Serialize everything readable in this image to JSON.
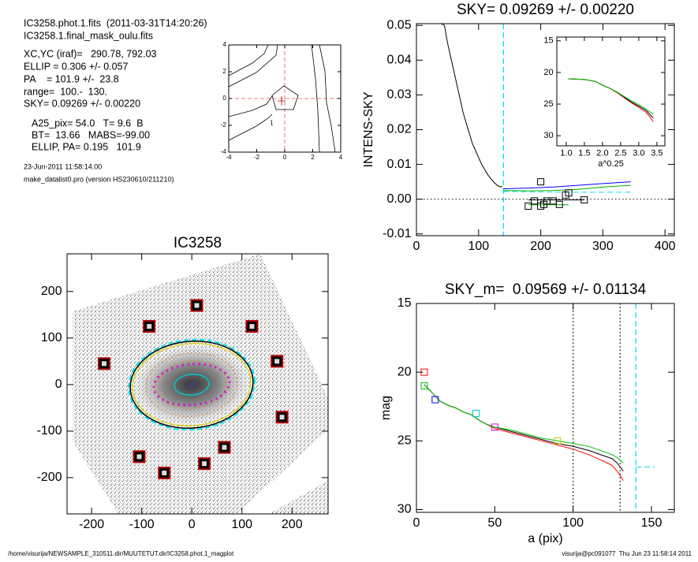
{
  "header": {
    "lines": [
      "IC3258.phot.1.fits  (2011-03-31T14:20:26)",
      "IC3258.1.final_mask_oulu.fits",
      "XC,YC (iraf)=   290.78, 792.03",
      "ELLIP = 0.306 +/- 0.057",
      "PA    = 101.9 +/-  23.8",
      "range=  100.-  130.",
      "SKY= 0.09269 +/- 0.00220",
      "A25_pix= 54.0   T= 9.6  B",
      "BT=  13.66   MABS=-99.00",
      "ELLIP, PA= 0.195   101.9",
      "23-Jun-2011 11:58:14.00",
      "make_datalist0.pro (version HS230610/211210)"
    ]
  },
  "footer": {
    "left": "/home/visurija/NEWSAMPLE_310511.dir/MUUTETUT.dir/IC3258.phot.1_magplot",
    "right": "visurija@pc091077  Thu Jun 23 11:58:14 2011"
  },
  "chart_data": [
    {
      "type": "contour",
      "xlim": [
        -4,
        4
      ],
      "ylim": [
        -4,
        4
      ],
      "xticks": [
        -4,
        -2,
        0,
        2,
        4
      ],
      "yticks": [
        -4,
        -2,
        0,
        2,
        4
      ]
    },
    {
      "type": "line",
      "title": "SKY= 0.09269 +/- 0.00220",
      "y_label": "INTENS-SKY",
      "xlim": [
        0,
        415
      ],
      "ylim": [
        -0.0105,
        0.0505
      ],
      "xticks": [
        0,
        100,
        200,
        300,
        400
      ],
      "yticks": [
        -0.01,
        {
          "value": 0,
          "label": "0.00"
        },
        0.01,
        0.02,
        0.03,
        0.04,
        0.05
      ],
      "series": [
        {
          "color": "#000000",
          "style": "solid",
          "x": [
            40,
            45,
            50,
            55,
            60,
            65,
            70,
            75,
            80,
            85,
            90,
            95,
            100,
            105,
            110,
            115,
            120,
            125,
            130,
            135,
            138
          ],
          "values": [
            0.0505,
            0.05,
            0.045,
            0.041,
            0.037,
            0.033,
            0.029,
            0.025,
            0.022,
            0.019,
            0.016,
            0.014,
            0.012,
            0.01,
            0.0085,
            0.007,
            0.0058,
            0.0048,
            0.004,
            0.0035,
            0.0038
          ]
        },
        {
          "color": "#0000ff",
          "style": "solid",
          "x": [
            140,
            180,
            220,
            260,
            300,
            345
          ],
          "values": [
            0.003,
            0.0032,
            0.0035,
            0.004,
            0.0045,
            0.005
          ]
        },
        {
          "color": "#00b000",
          "style": "solid",
          "x": [
            140,
            180,
            220,
            260,
            300,
            345
          ],
          "values": [
            0.0025,
            0.0024,
            0.0025,
            0.0028,
            0.0035,
            0.004
          ]
        },
        {
          "color": "#00e5ee",
          "style": "dashed",
          "x": [
            140,
            250,
            345
          ],
          "values": [
            0.0022,
            0.002,
            0.002
          ]
        },
        {
          "color": "#000000",
          "style": "solid",
          "x": [
            180,
            270
          ],
          "values": [
            -0.0002,
            -0.0002
          ]
        },
        {
          "color": "#00b000",
          "style": "solid",
          "x": [
            180,
            245
          ],
          "values": [
            -0.0016,
            -0.0016
          ]
        },
        {
          "color": "#000000",
          "marker": "square",
          "x": [
            180,
            190,
            200,
            200,
            205,
            210,
            220,
            230,
            240,
            245,
            270
          ],
          "values": [
            -0.002,
            -0.0005,
            0.005,
            -0.002,
            -0.0015,
            -0.0005,
            -0.0005,
            -0.0015,
            0.0012,
            0.0018,
            -0.0002
          ]
        }
      ],
      "vlines": [
        {
          "x": 140,
          "color": "#00e5ee",
          "style": "dashed"
        }
      ],
      "hlines": [
        {
          "y": 0,
          "color": "#000000",
          "style": "dotted"
        }
      ]
    },
    {
      "type": "line",
      "x_label": "a^0.25",
      "xlim": [
        0.74,
        3.72
      ],
      "ylim": [
        31.6,
        14.4
      ],
      "xticks": [
        {
          "value": 1,
          "label": "1.0"
        },
        1.5,
        {
          "value": 2,
          "label": "2.0"
        },
        2.5,
        {
          "value": 3,
          "label": "3.0"
        },
        3.5
      ],
      "yticks": [
        15,
        20,
        25,
        30
      ],
      "series": [
        {
          "color": "#ff0000",
          "style": "solid",
          "x": [
            1.05,
            1.5,
            1.8,
            2.0,
            2.2,
            2.4,
            2.6,
            2.8,
            3.0,
            3.2,
            3.3,
            3.4
          ],
          "values": [
            21.0,
            21.1,
            21.4,
            22.0,
            22.5,
            23.2,
            24.0,
            24.8,
            25.5,
            26.3,
            27.0,
            27.8
          ]
        },
        {
          "color": "#000000",
          "style": "solid",
          "x": [
            1.05,
            1.5,
            1.8,
            2.0,
            2.2,
            2.4,
            2.6,
            2.8,
            3.0,
            3.2,
            3.3,
            3.4
          ],
          "values": [
            21.0,
            21.1,
            21.4,
            22.0,
            22.5,
            23.1,
            23.9,
            24.7,
            25.3,
            26.0,
            26.6,
            27.2
          ]
        },
        {
          "color": "#00c000",
          "style": "solid",
          "x": [
            1.05,
            1.5,
            1.8,
            2.0,
            2.2,
            2.4,
            2.6,
            2.8,
            3.0,
            3.2,
            3.3,
            3.4
          ],
          "values": [
            21.0,
            21.1,
            21.4,
            22.0,
            22.5,
            23.1,
            23.8,
            24.5,
            25.1,
            25.8,
            26.2,
            26.6
          ]
        }
      ]
    },
    {
      "type": "image",
      "title": "IC3258",
      "xlim": [
        -249,
        272
      ],
      "ylim": [
        -278,
        281
      ],
      "xticks": [
        -200,
        -100,
        0,
        100,
        200
      ],
      "yticks": [
        -200,
        -100,
        0,
        100,
        200
      ],
      "series": [
        {
          "color": "#b00000",
          "marker": "box",
          "x": [
            10,
            -85,
            120,
            -175,
            170,
            180,
            -105,
            65,
            25,
            -55
          ],
          "values": [
            170,
            125,
            125,
            45,
            50,
            -70,
            -155,
            -135,
            -170,
            -190
          ]
        }
      ]
    },
    {
      "type": "line",
      "title": "SKY_m=  0.09569 +/- 0.01134",
      "x_label": "a (pix)",
      "y_label": "mag",
      "xlim": [
        0,
        164.6
      ],
      "ylim": [
        30.2,
        15
      ],
      "xticks": [
        0,
        50,
        100,
        150
      ],
      "yticks": [
        15,
        20,
        25,
        30
      ],
      "series": [
        {
          "color": "#ff0000",
          "style": "solid",
          "x": [
            5,
            10,
            15,
            20,
            25,
            30,
            35,
            40,
            45,
            50,
            60,
            70,
            80,
            90,
            100,
            110,
            120,
            125,
            128,
            130,
            132
          ],
          "values": [
            20.9,
            21.5,
            22.1,
            22.4,
            22.6,
            22.9,
            23.1,
            23.5,
            23.8,
            24.1,
            24.4,
            24.7,
            25.0,
            25.3,
            25.6,
            26.0,
            26.5,
            26.8,
            27.2,
            27.5,
            27.9
          ]
        },
        {
          "color": "#000000",
          "style": "solid",
          "x": [
            5,
            10,
            15,
            20,
            25,
            30,
            35,
            40,
            45,
            50,
            60,
            70,
            80,
            90,
            100,
            110,
            120,
            125,
            128,
            130,
            132
          ],
          "values": [
            20.9,
            21.5,
            22.1,
            22.4,
            22.6,
            22.9,
            23.1,
            23.5,
            23.8,
            24.0,
            24.3,
            24.6,
            24.9,
            25.2,
            25.4,
            25.7,
            26.1,
            26.3,
            26.6,
            26.9,
            27.2
          ]
        },
        {
          "color": "#00c000",
          "style": "solid",
          "x": [
            5,
            10,
            15,
            20,
            25,
            30,
            35,
            40,
            45,
            50,
            60,
            70,
            80,
            90,
            100,
            110,
            120,
            125,
            128,
            130,
            132
          ],
          "values": [
            20.9,
            21.5,
            22.1,
            22.4,
            22.6,
            22.9,
            23.1,
            23.5,
            23.8,
            24.0,
            24.2,
            24.5,
            24.8,
            25.0,
            25.2,
            25.4,
            25.8,
            26.0,
            26.2,
            26.4,
            26.6
          ]
        },
        {
          "color": "#00e5ee",
          "style": "dashed",
          "x": [
            140,
            152
          ],
          "values": [
            26.9,
            26.9
          ]
        },
        {
          "color": "#ff0000",
          "marker": "square",
          "x": [
            5
          ],
          "values": [
            20.0
          ]
        },
        {
          "color": "#00c000",
          "marker": "square",
          "x": [
            5
          ],
          "values": [
            21.0
          ]
        },
        {
          "color": "#0000ff",
          "marker": "square",
          "x": [
            12
          ],
          "values": [
            22.0
          ]
        },
        {
          "color": "#00c8d0",
          "marker": "square",
          "x": [
            38
          ],
          "values": [
            23.0
          ]
        },
        {
          "color": "#e000e0",
          "marker": "square",
          "x": [
            50
          ],
          "values": [
            24.0
          ]
        },
        {
          "color": "#c8c800",
          "marker": "square",
          "x": [
            90
          ],
          "values": [
            25.0
          ]
        }
      ],
      "vlines": [
        {
          "x": 100,
          "color": "#000000",
          "style": "dotted"
        },
        {
          "x": 130,
          "color": "#000000",
          "style": "dotted"
        },
        {
          "x": 140,
          "color": "#00e5ee",
          "style": "dashed"
        }
      ]
    }
  ]
}
